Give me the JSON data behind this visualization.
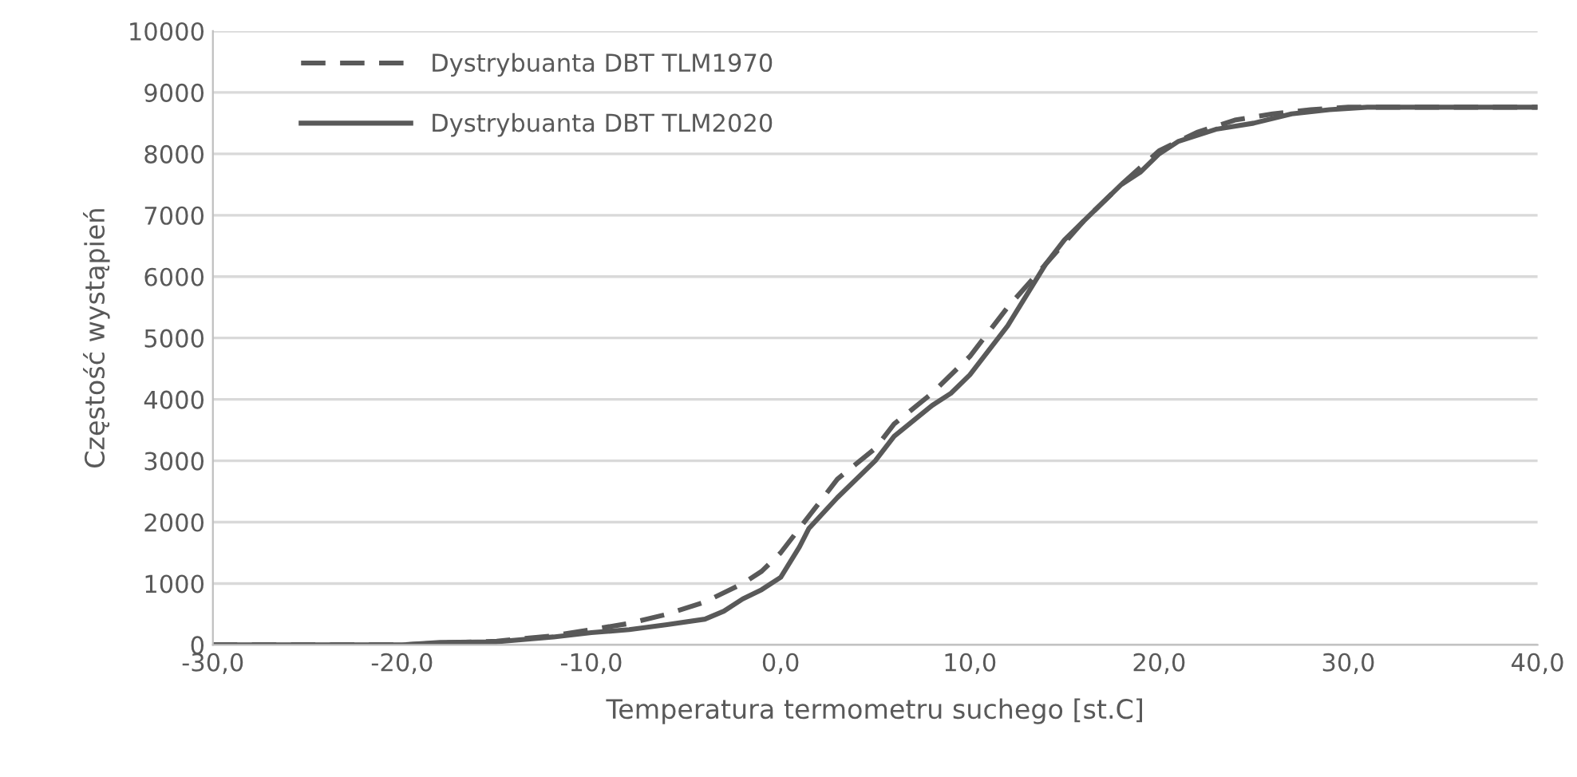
{
  "chart_data": {
    "type": "line",
    "xlabel": "Temperatura termometru suchego [st.C]",
    "ylabel": "Częstość wystąpień",
    "xlim": [
      -30,
      40
    ],
    "ylim": [
      0,
      10000
    ],
    "xticks": [
      {
        "value": -30,
        "label": "-30,0"
      },
      {
        "value": -20,
        "label": "-20,0"
      },
      {
        "value": -10,
        "label": "-10,0"
      },
      {
        "value": 0,
        "label": "0,0"
      },
      {
        "value": 10,
        "label": "10,0"
      },
      {
        "value": 20,
        "label": "20,0"
      },
      {
        "value": 30,
        "label": "30,0"
      },
      {
        "value": 40,
        "label": "40,0"
      }
    ],
    "yticks": [
      0,
      1000,
      2000,
      3000,
      4000,
      5000,
      6000,
      7000,
      8000,
      9000,
      10000
    ],
    "grid": "y",
    "legend": "top left",
    "marker": "none",
    "series": [
      {
        "name": "Dystrybuanta DBT TLM1970",
        "color": "#595959",
        "line_style": "dashed",
        "x": [
          -30,
          -20,
          -18,
          -15,
          -12,
          -10,
          -8,
          -6,
          -4,
          -2,
          -1,
          0,
          1,
          2,
          3,
          5,
          6,
          8,
          10,
          12,
          14,
          16,
          18,
          20,
          22,
          24,
          26,
          28,
          30,
          40
        ],
        "values": [
          0,
          0,
          30,
          60,
          150,
          250,
          350,
          500,
          700,
          1000,
          1200,
          1500,
          1900,
          2300,
          2700,
          3200,
          3600,
          4100,
          4700,
          5500,
          6200,
          6900,
          7500,
          8050,
          8350,
          8550,
          8650,
          8720,
          8760,
          8760
        ]
      },
      {
        "name": "Dystrybuanta DBT TLM2020",
        "color": "#595959",
        "line_style": "solid",
        "x": [
          -30,
          -20,
          -18,
          -15,
          -12,
          -10,
          -8,
          -6,
          -4,
          -3,
          -2,
          -1,
          0,
          1,
          1.5,
          3,
          5,
          6,
          8,
          9,
          10,
          11,
          12,
          13,
          14,
          15,
          16,
          17,
          18,
          19,
          20,
          21,
          23,
          25,
          27,
          29,
          31,
          40
        ],
        "values": [
          0,
          0,
          40,
          50,
          130,
          200,
          250,
          330,
          420,
          550,
          750,
          900,
          1100,
          1600,
          1900,
          2400,
          3000,
          3400,
          3900,
          4100,
          4400,
          4800,
          5200,
          5700,
          6200,
          6600,
          6900,
          7200,
          7500,
          7700,
          8000,
          8200,
          8400,
          8500,
          8650,
          8720,
          8760,
          8760
        ]
      }
    ]
  }
}
